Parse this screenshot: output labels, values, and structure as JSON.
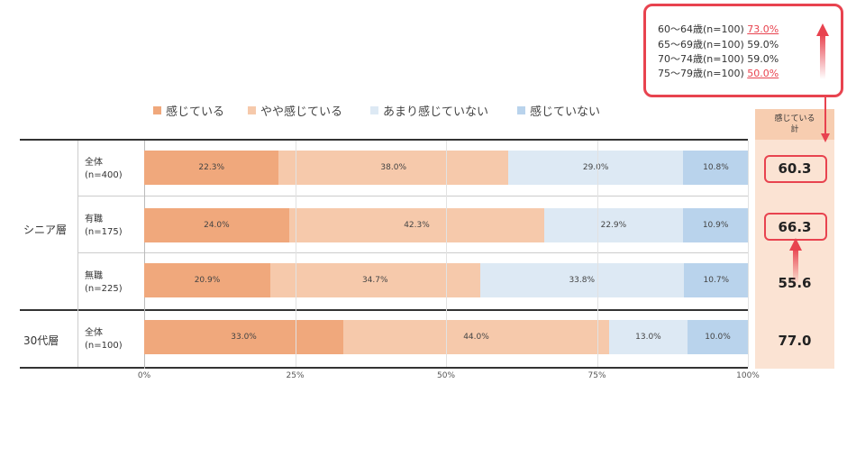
{
  "chart_data": {
    "type": "bar",
    "orientation": "horizontal",
    "stacked": true,
    "legend_position": "top",
    "xlim": [
      0,
      100
    ],
    "x_ticks": [
      "0%",
      "25%",
      "50%",
      "75%",
      "100%"
    ],
    "series": [
      {
        "name": "感じている",
        "color": "#f0a87c"
      },
      {
        "name": "やや感じている",
        "color": "#f6c9ab"
      },
      {
        "name": "あまり感じていない",
        "color": "#dde9f4"
      },
      {
        "name": "感じていない",
        "color": "#b9d3ec"
      }
    ],
    "groups": [
      {
        "label": "シニア層",
        "rows": [
          {
            "label": "全体",
            "n": "(n=400)",
            "values": [
              22.3,
              38.0,
              29.0,
              10.8
            ],
            "value_labels": [
              "22.3%",
              "38.0%",
              "29.0%",
              "10.8%"
            ],
            "total": "60.3",
            "highlight": true
          },
          {
            "label": "有職",
            "n": "(n=175)",
            "values": [
              24.0,
              42.3,
              22.9,
              10.9
            ],
            "value_labels": [
              "24.0%",
              "42.3%",
              "22.9%",
              "10.9%"
            ],
            "total": "66.3",
            "highlight": true
          },
          {
            "label": "無職",
            "n": "(n=225)",
            "values": [
              20.9,
              34.7,
              33.8,
              10.7
            ],
            "value_labels": [
              "20.9%",
              "34.7%",
              "33.8%",
              "10.7%"
            ],
            "total": "55.6",
            "highlight": false
          }
        ]
      },
      {
        "label": "30代層",
        "rows": [
          {
            "label": "全体",
            "n": "(n=100)",
            "values": [
              33.0,
              44.0,
              13.0,
              10.0
            ],
            "value_labels": [
              "33.0%",
              "44.0%",
              "13.0%",
              "10.0%"
            ],
            "total": "77.0",
            "highlight": false
          }
        ]
      }
    ],
    "total_header": [
      "感じている",
      "計"
    ],
    "total_column_color": "#fbe3d3",
    "highlight_color": "#e8434f"
  },
  "callout": {
    "lines": [
      {
        "label": "60～64歳(n=100)",
        "value": "73.0%",
        "highlight": true
      },
      {
        "label": "65～69歳(n=100)",
        "value": "59.0%",
        "highlight": false
      },
      {
        "label": "70～74歳(n=100)",
        "value": "59.0%",
        "highlight": false
      },
      {
        "label": "75～79歳(n=100)",
        "value": "50.0%",
        "highlight": true
      }
    ]
  }
}
